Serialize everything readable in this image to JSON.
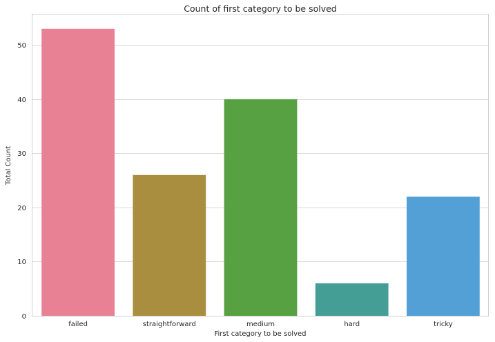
{
  "chart_data": {
    "type": "bar",
    "title": "Count of first category to be solved",
    "xlabel": "First category to be solved",
    "ylabel": "Total Count",
    "categories": [
      "failed",
      "straightforward",
      "medium",
      "hard",
      "tricky"
    ],
    "values": [
      53,
      26,
      40,
      6,
      22
    ],
    "colors": [
      "#e88193",
      "#a88e3e",
      "#58a143",
      "#449e95",
      "#52a0d6"
    ],
    "ylim": [
      0,
      55.65
    ],
    "yticks": [
      0,
      10,
      20,
      30,
      40,
      50
    ],
    "grid": true,
    "background": "#ffffff",
    "grid_color": "#d9d9d9"
  }
}
